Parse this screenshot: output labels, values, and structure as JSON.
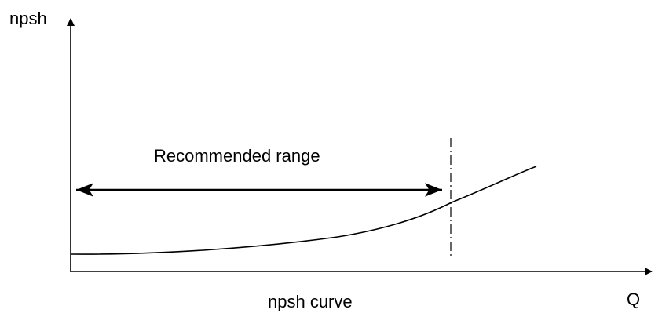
{
  "diagram": {
    "y_axis_label": "npsh",
    "x_axis_label": "Q",
    "range_label": "Recommended range",
    "caption": "npsh curve"
  },
  "colors": {
    "stroke": "#000000",
    "background": "#ffffff"
  }
}
